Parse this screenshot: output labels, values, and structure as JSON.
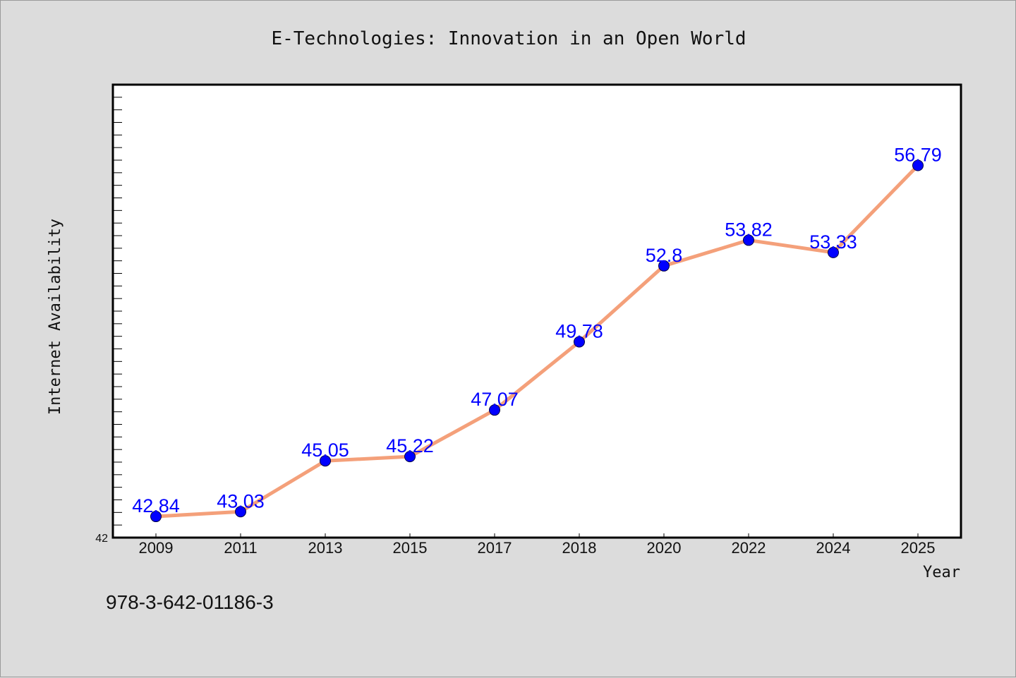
{
  "chart_data": {
    "type": "line",
    "title": "E-Technologies: Innovation in an Open World",
    "xlabel": "Year",
    "ylabel": "Internet Availability",
    "categories": [
      "2009",
      "2011",
      "2013",
      "2015",
      "2017",
      "2018",
      "2020",
      "2022",
      "2024",
      "2025"
    ],
    "series": [
      {
        "values": [
          42.84,
          43.03,
          45.05,
          45.22,
          47.07,
          49.78,
          52.8,
          53.82,
          53.33,
          56.79
        ],
        "labels": [
          "42.84",
          "43.03",
          "45.05",
          "45.22",
          "47.07",
          "49.78",
          "52.8",
          "53.82",
          "53.33",
          "56.79"
        ]
      }
    ],
    "ylim": [
      42,
      60
    ],
    "y_tick_labels_shown": [
      "42"
    ],
    "grid": false,
    "colors": {
      "line": "#f4a07a",
      "marker": "#0000ff",
      "data_label": "#0000ff",
      "background": "#dcdcdc",
      "plot_area": "#ffffff"
    }
  },
  "footer": {
    "isbn": "978-3-642-01186-3"
  }
}
